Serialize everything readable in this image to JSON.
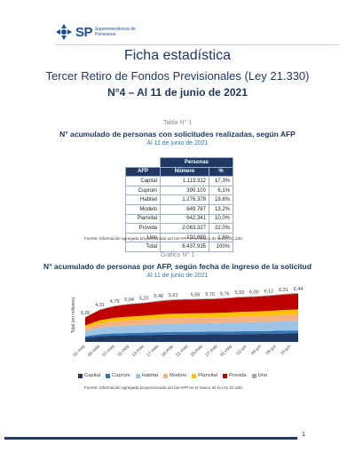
{
  "header": {
    "logo_abbr": "SP",
    "logo_text": "Superintendencia de Pensiones"
  },
  "titles": {
    "main": "Ficha estadística",
    "subtitle": "Tercer Retiro de Fondos Previsionales (Ley 21.330)",
    "edition": "N°4 – Al 11 de junio de 2021"
  },
  "table_section": {
    "label": "Tabla N° 1",
    "title": "N° acumulado de personas con solicitudes realizadas, según AFP",
    "date": "Al 11 de junio de 2021",
    "group_header": "Personas",
    "col_afp": "AFP",
    "col_num": "Número",
    "col_pct": "%",
    "rows": [
      {
        "afp": "Capital",
        "num": "1.113.312",
        "pct": "17,3%"
      },
      {
        "afp": "Cuprum",
        "num": "390.100",
        "pct": "6,1%"
      },
      {
        "afp": "Habitat",
        "num": "1.276.378",
        "pct": "19,8%"
      },
      {
        "afp": "Modelo",
        "num": "849.787",
        "pct": "13,2%"
      },
      {
        "afp": "Planvital",
        "num": "642.341",
        "pct": "10,0%"
      },
      {
        "afp": "Provida",
        "num": "2.063.327",
        "pct": "32,0%"
      },
      {
        "afp": "Uno",
        "num": "102.690",
        "pct": "1,6%"
      },
      {
        "afp": "Total",
        "num": "6.437.935",
        "pct": "100%"
      }
    ],
    "source": "Fuente: Información agregada proporcionada por las AFP en el marco de la Ley 21.330."
  },
  "chart_section": {
    "label": "Gráfico N° 1",
    "title": "N° acumulado de personas por AFP, según fecha de ingreso de la solicitud",
    "date": "Al 11 de junio de 2021",
    "source": "Fuente: Información agregada proporcionada por las AFP en el marco de la Ley 21.330."
  },
  "chart_data": {
    "type": "area",
    "stacked": true,
    "ylabel": "Total (en millones)",
    "x": [
      "01-may",
      "04-may",
      "05-may",
      "06-may",
      "07-may",
      "10-may",
      "11-may",
      "12-may",
      "13-may",
      "14-may",
      "17-may",
      "18-may",
      "19-may",
      "20-may",
      "21-may",
      "24-may",
      "25-may",
      "26-may",
      "27-may",
      "28-may",
      "31-may",
      "01-jun",
      "02-jun",
      "03-jun",
      "04-jun",
      "07-jun",
      "08-jun",
      "09-jun",
      "10-jun",
      "11-jun"
    ],
    "tick_labels": [
      "01-may",
      "04-may",
      "05-may",
      "06-may",
      "07-may",
      "10-may",
      "11-may",
      "12-may",
      "13-may",
      "14-may",
      "17-may",
      "18-may",
      "19-may",
      "20-may",
      "21-may",
      "24-may",
      "25-may",
      "26-may",
      "27-may",
      "28-may",
      "31-may",
      "01-jun",
      "02-jun",
      "03-jun",
      "04-jun",
      "07-jun",
      "08-jun",
      "09-jun",
      "10-jun",
      "11-jun"
    ],
    "shown_ticks": [
      "01-may",
      "04-may",
      "05-may",
      "06-may",
      "07-may",
      "10-may",
      "11-may",
      "12-may",
      "13-may",
      "14-may",
      "17-may",
      "18-may",
      "19-may",
      "20-may",
      "21-may",
      "24-may",
      "25-may",
      "26-may",
      "27-may",
      "28-may",
      "31-may",
      "01-jun",
      "02-jun",
      "03-jun",
      "04-jun",
      "07-jun",
      "08-jun",
      "09-jun",
      "10-jun",
      "11-jun"
    ],
    "total_labels": [
      {
        "x": "01-may",
        "value": "3,26"
      },
      {
        "x": "04-may",
        "value": "4,31"
      },
      {
        "x": "05-may",
        "value": "4,79"
      },
      {
        "x": "06-may",
        "value": "5,04"
      },
      {
        "x": "07-may",
        "value": "5,20"
      },
      {
        "x": "10-may",
        "value": "5,46"
      },
      {
        "x": "11-may",
        "value": "5,61"
      },
      {
        "x": "12-may",
        "value": "5,65"
      },
      {
        "x": "13-may",
        "value": "5,70"
      },
      {
        "x": "14-may",
        "value": "5,76"
      },
      {
        "x": "17-may",
        "value": "5,93"
      },
      {
        "x": "18-may",
        "value": "6,00"
      },
      {
        "x": "19-may",
        "value": "6,12"
      },
      {
        "x": "20-may",
        "value": "6,31"
      },
      {
        "x": "21-may",
        "value": "6,44"
      }
    ],
    "series": [
      {
        "name": "Capital",
        "color": "#1f3864"
      },
      {
        "name": "Cuprum",
        "color": "#2e75b6"
      },
      {
        "name": "Habitat",
        "color": "#9dc3e6"
      },
      {
        "name": "Modelo",
        "color": "#f4b183"
      },
      {
        "name": "Planvital",
        "color": "#ffc000"
      },
      {
        "name": "Provida",
        "color": "#c00000"
      },
      {
        "name": "Uno",
        "color": "#a6a6a6"
      }
    ]
  },
  "footer": {
    "page_number": "1"
  }
}
